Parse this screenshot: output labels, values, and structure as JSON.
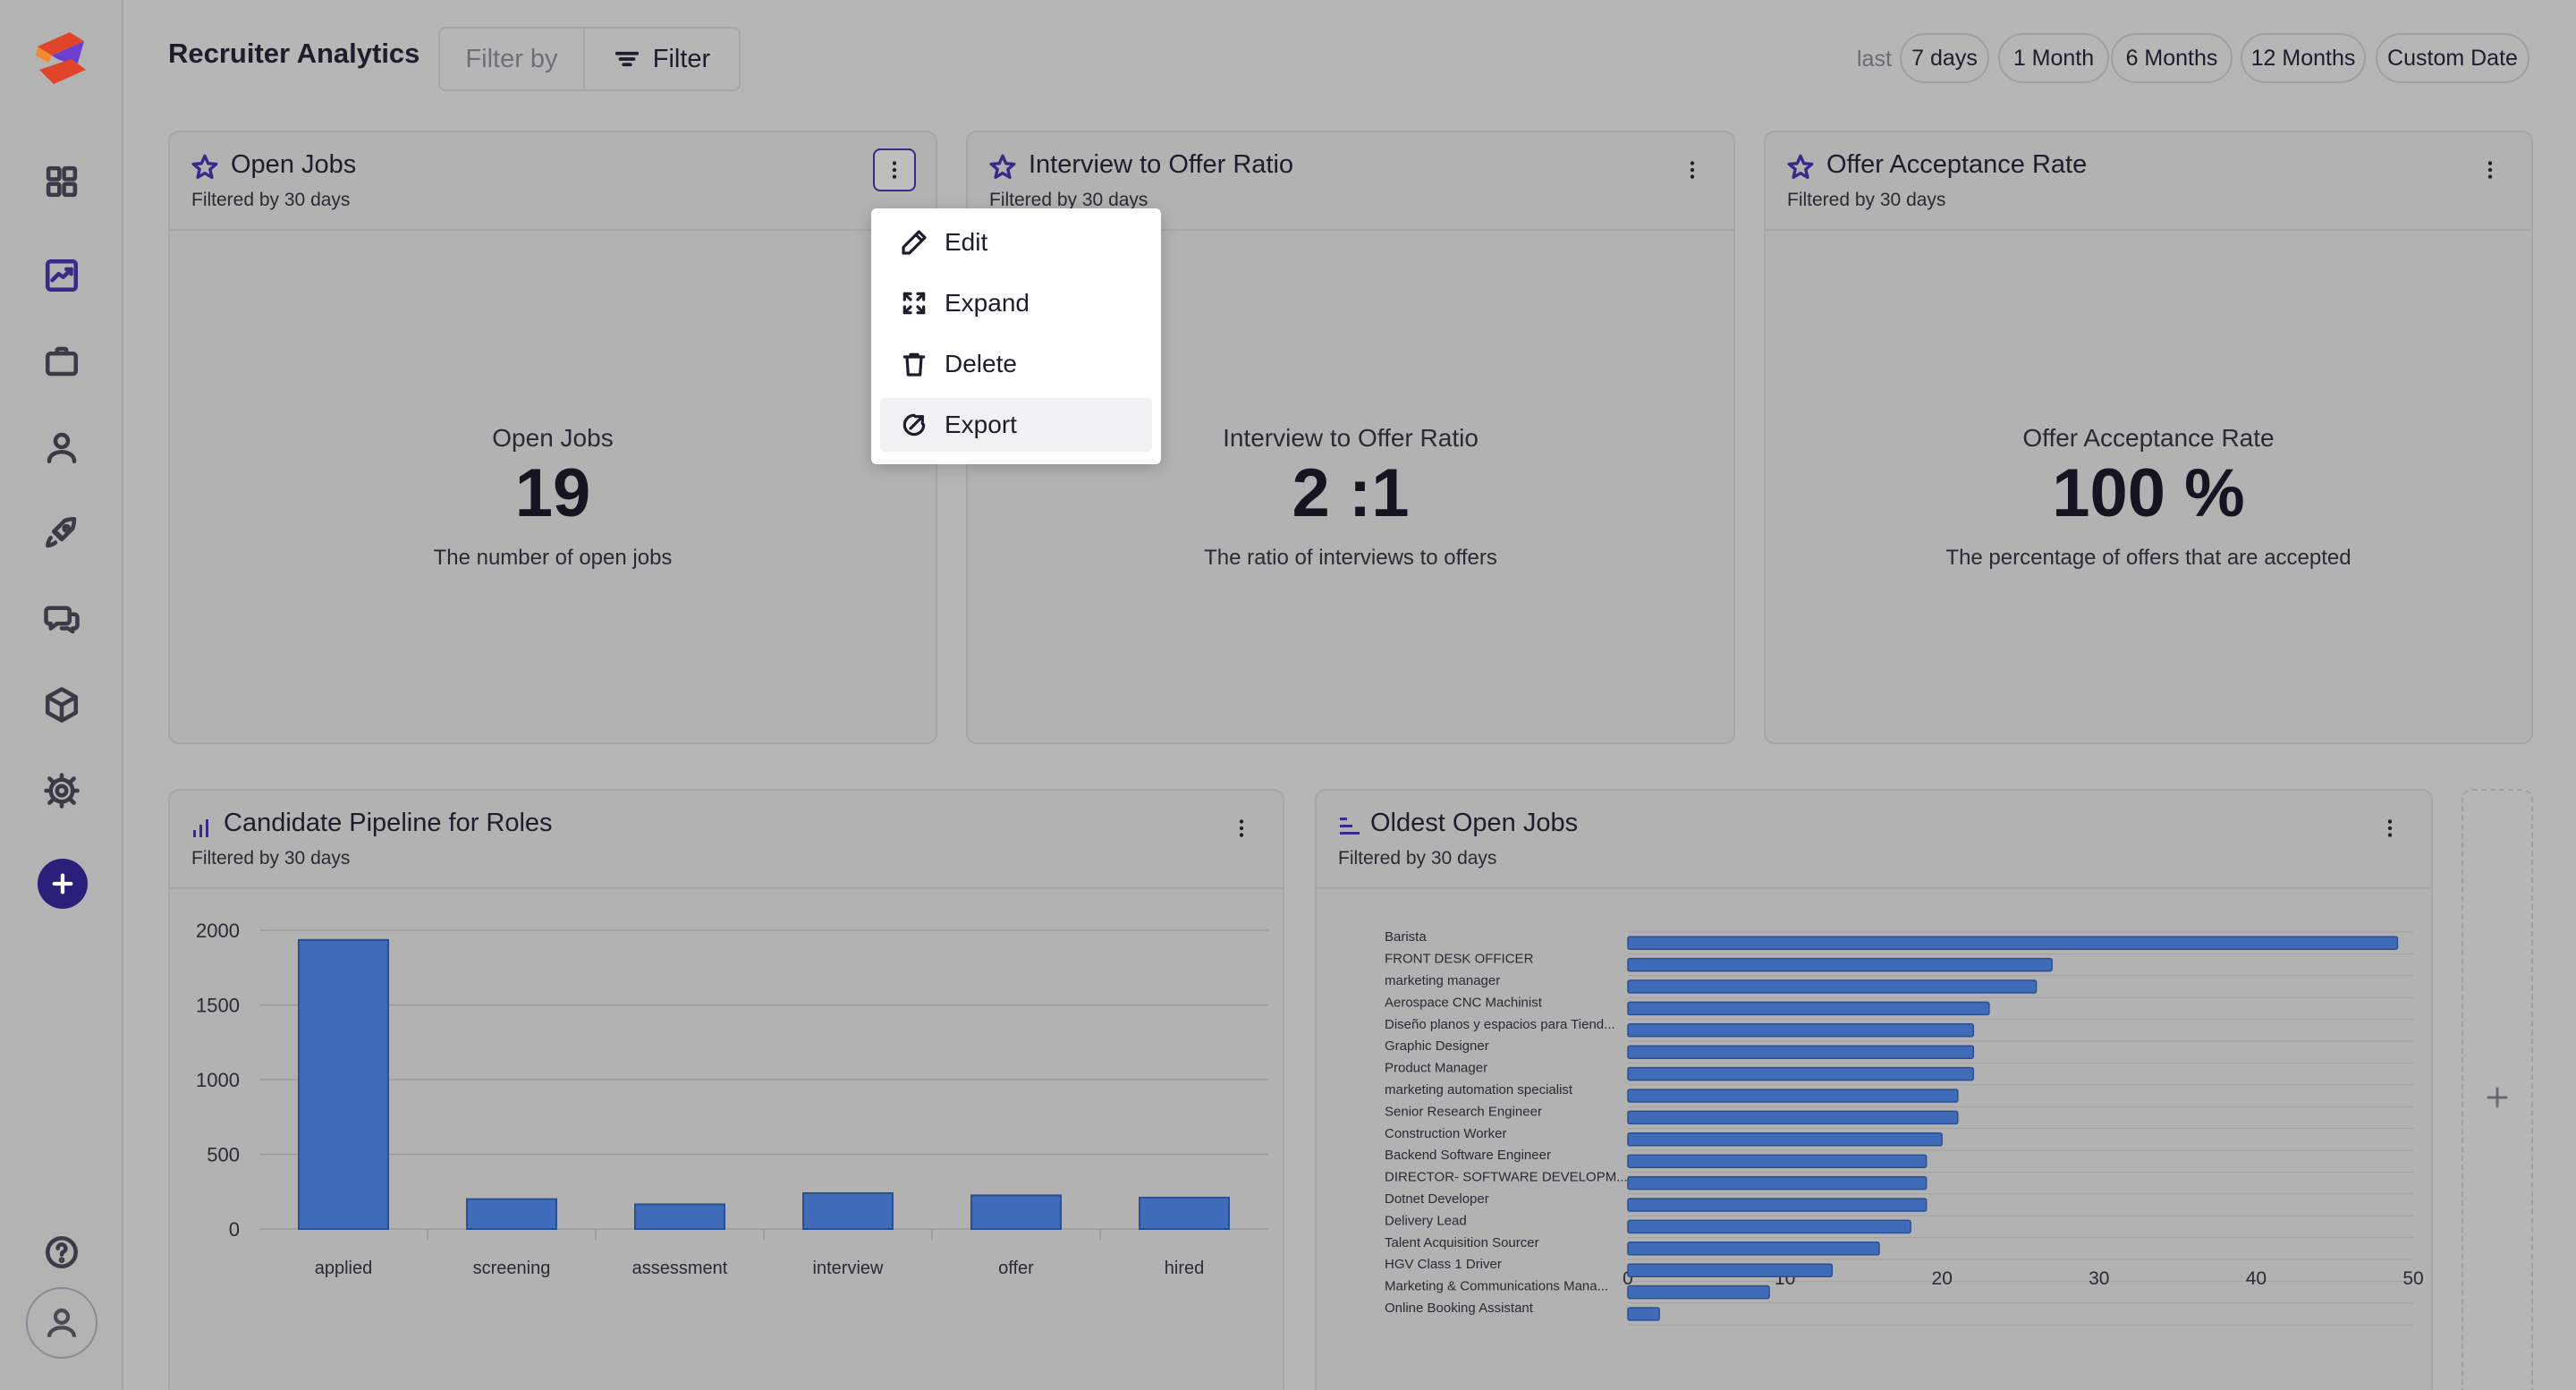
{
  "header": {
    "title": "Recruiter Analytics",
    "filter_placeholder": "Filter by",
    "filter_button": "Filter",
    "range_label": "last",
    "ranges": [
      "7 days",
      "1 Month",
      "6 Months",
      "12 Months",
      "Custom Date"
    ]
  },
  "metrics": [
    {
      "title": "Open Jobs",
      "subtitle": "Filtered by 30 days",
      "label": "Open Jobs",
      "value": "19",
      "description": "The number of open jobs"
    },
    {
      "title": "Interview to Offer Ratio",
      "subtitle": "Filtered by 30 days",
      "label": "Interview to Offer Ratio",
      "value": "2 :1",
      "description": "The ratio of interviews to offers"
    },
    {
      "title": "Offer Acceptance Rate",
      "subtitle": "Filtered by 30 days",
      "label": "Offer Acceptance Rate",
      "value": "100 %",
      "description": "The percentage of offers that are accepted"
    }
  ],
  "dropdown": {
    "items": [
      "Edit",
      "Expand",
      "Delete",
      "Export"
    ],
    "highlighted": "Export"
  },
  "pipeline_card": {
    "title": "Candidate Pipeline for Roles",
    "subtitle": "Filtered by 30 days"
  },
  "oldest_card": {
    "title": "Oldest Open Jobs",
    "subtitle": "Filtered by 30 days"
  },
  "colors": {
    "accent": "#3a2a88",
    "bar": "#3f6bb8"
  },
  "chart_data": [
    {
      "type": "bar",
      "categories": [
        "applied",
        "screening",
        "assessment",
        "interview",
        "offer",
        "hired"
      ],
      "values": [
        1935,
        200,
        165,
        240,
        225,
        210
      ],
      "ylim": [
        0,
        2000
      ],
      "yticks": [
        0,
        500,
        1000,
        1500,
        2000
      ],
      "grid": true
    },
    {
      "type": "bar",
      "orientation": "horizontal",
      "categories": [
        "Barista",
        "FRONT DESK OFFICER",
        "marketing manager",
        "Aerospace CNC Machinist",
        "Diseño planos y espacios para Tiend...",
        "Graphic Designer",
        "Product Manager",
        "marketing automation specialist",
        "Senior Research Engineer",
        "Construction Worker",
        "Backend Software Engineer",
        "DIRECTOR- SOFTWARE DEVELOPM...",
        "Dotnet Developer",
        "Delivery Lead",
        "Talent Acquisition Sourcer",
        "HGV Class 1 Driver",
        "Marketing & Communications Mana...",
        "Online Booking Assistant"
      ],
      "values": [
        49,
        27,
        26,
        23,
        22,
        22,
        22,
        21,
        21,
        20,
        19,
        19,
        19,
        18,
        16,
        13,
        9,
        2
      ],
      "xlim": [
        0,
        50
      ],
      "xticks": [
        0,
        10,
        20,
        30,
        40,
        50
      ],
      "grid": true
    }
  ]
}
